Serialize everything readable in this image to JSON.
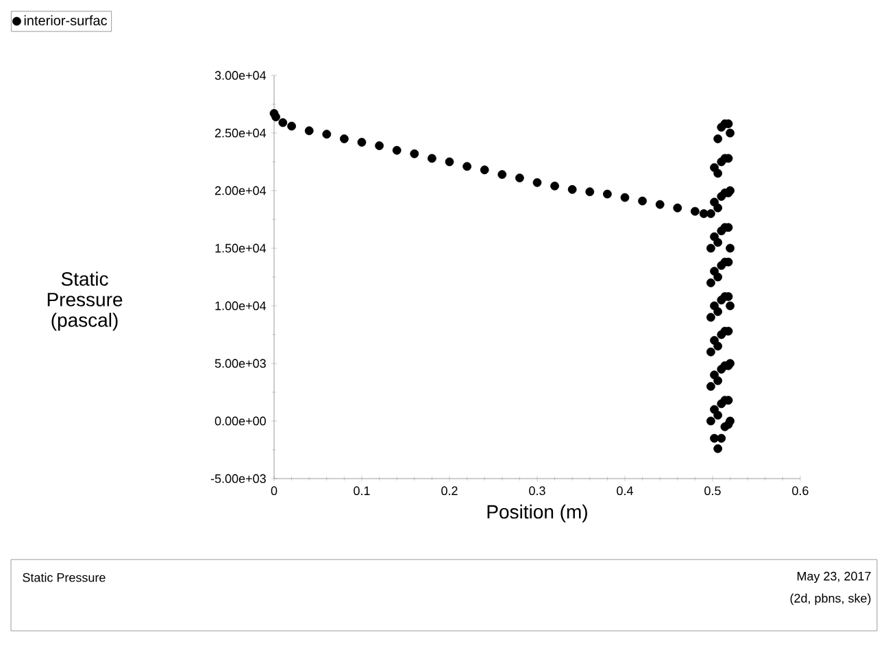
{
  "chart_data": {
    "type": "scatter",
    "xlabel": "Position (m)",
    "ylabel": "Static Pressure (pascal)",
    "xlim": [
      0,
      0.6
    ],
    "xticks": [
      0,
      0.1,
      0.2,
      0.3,
      0.4,
      0.5,
      0.6
    ],
    "ylim": [
      -5000,
      30000
    ],
    "yticks": [
      {
        "value": -5000,
        "label": "-5.00e+03"
      },
      {
        "value": 0,
        "label": "0.00e+00"
      },
      {
        "value": 5000,
        "label": "5.00e+03"
      },
      {
        "value": 10000,
        "label": "1.00e+04"
      },
      {
        "value": 15000,
        "label": "1.50e+04"
      },
      {
        "value": 20000,
        "label": "2.00e+04"
      },
      {
        "value": 25000,
        "label": "2.50e+04"
      },
      {
        "value": 30000,
        "label": "3.00e+04"
      }
    ],
    "legend": "top left",
    "marker": "circle",
    "grid": false,
    "annotations": [
      "Static Pressure",
      "May 23, 2017",
      "(2d, pbns, ske)"
    ],
    "series": [
      {
        "name": "interior-surfac",
        "color": "#000000",
        "x": [
          0,
          0.002,
          0.01,
          0.02,
          0.04,
          0.06,
          0.08,
          0.1,
          0.12,
          0.14,
          0.16,
          0.18,
          0.2,
          0.22,
          0.24,
          0.26,
          0.28,
          0.3,
          0.32,
          0.34,
          0.36,
          0.38,
          0.4,
          0.42,
          0.44,
          0.46,
          0.48,
          0.49,
          0.498,
          0.498,
          0.498,
          0.498,
          0.498,
          0.498,
          0.498,
          0.502,
          0.502,
          0.502,
          0.502,
          0.502,
          0.502,
          0.502,
          0.502,
          0.502,
          0.506,
          0.506,
          0.506,
          0.506,
          0.506,
          0.506,
          0.506,
          0.506,
          0.506,
          0.506,
          0.51,
          0.51,
          0.51,
          0.51,
          0.51,
          0.51,
          0.51,
          0.51,
          0.51,
          0.51,
          0.514,
          0.514,
          0.514,
          0.514,
          0.514,
          0.514,
          0.514,
          0.514,
          0.514,
          0.514,
          0.518,
          0.518,
          0.518,
          0.518,
          0.518,
          0.518,
          0.518,
          0.518,
          0.518,
          0.518,
          0.52,
          0.52,
          0.52,
          0.52,
          0.52,
          0.52
        ],
        "values": [
          26700,
          26400,
          25900,
          25600,
          25200,
          24900,
          24500,
          24200,
          23900,
          23500,
          23200,
          22800,
          22500,
          22100,
          21800,
          21400,
          21100,
          20700,
          20400,
          20100,
          19900,
          19700,
          19400,
          19100,
          18800,
          18500,
          18200,
          18000,
          18000,
          15000,
          12000,
          9000,
          6000,
          3000,
          0,
          22000,
          19000,
          16000,
          13000,
          10000,
          7000,
          4000,
          1000,
          -1500,
          24500,
          21500,
          18500,
          15500,
          12500,
          9500,
          6500,
          3500,
          500,
          -2400,
          25500,
          22500,
          19500,
          16500,
          13500,
          10500,
          7500,
          4500,
          1500,
          -1500,
          25800,
          22800,
          19800,
          16800,
          13800,
          10800,
          7800,
          4800,
          1800,
          -500,
          25800,
          22800,
          19800,
          16800,
          13800,
          10800,
          7800,
          4800,
          1800,
          -300,
          25000,
          20000,
          15000,
          10000,
          5000,
          0
        ]
      }
    ]
  }
}
